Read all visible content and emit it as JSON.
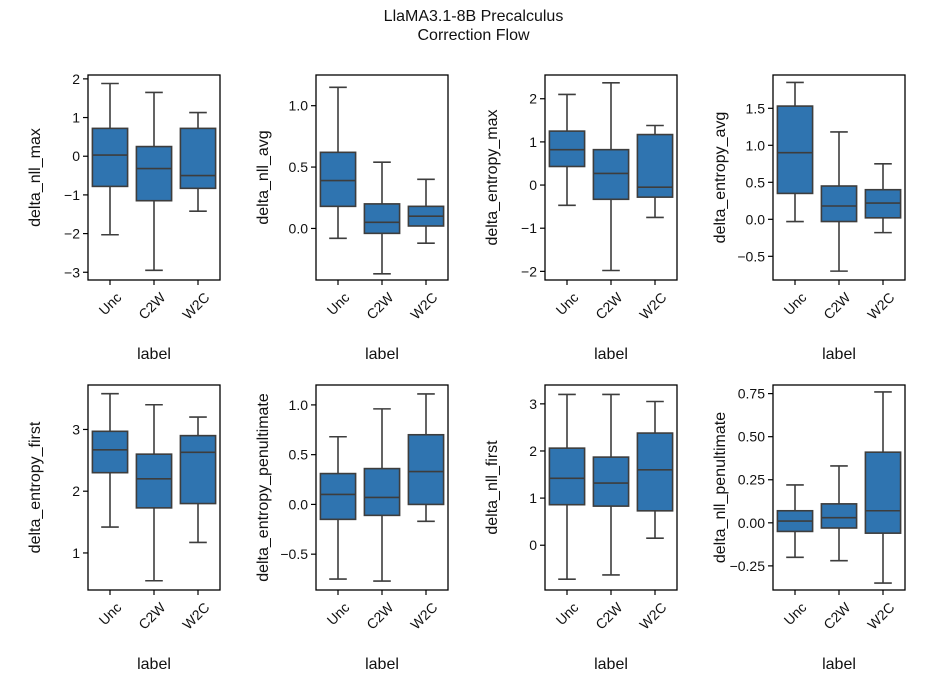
{
  "figure": {
    "title_line1": "LlaMA3.1-8B Precalculus",
    "title_line2": "Correction Flow",
    "box_color": "#2f74b0",
    "line_color": "#3d3d3d"
  },
  "chart_data": [
    {
      "type": "box",
      "ylabel": "delta_nll_max",
      "xlabel": "label",
      "categories": [
        "Unc",
        "C2W",
        "W2C"
      ],
      "ylim": [
        -3.2,
        2.1
      ],
      "yticks": [
        -3,
        -2,
        -1,
        0,
        1,
        2
      ],
      "yticklabels": [
        "−3",
        "−2",
        "−1",
        "0",
        "1",
        "2"
      ],
      "boxes": [
        {
          "whislo": -2.03,
          "q1": -0.78,
          "med": 0.03,
          "q3": 0.72,
          "whishi": 1.88
        },
        {
          "whislo": -2.95,
          "q1": -1.15,
          "med": -0.32,
          "q3": 0.25,
          "whishi": 1.65
        },
        {
          "whislo": -1.42,
          "q1": -0.83,
          "med": -0.5,
          "q3": 0.72,
          "whishi": 1.13
        }
      ]
    },
    {
      "type": "box",
      "ylabel": "delta_nll_avg",
      "xlabel": "label",
      "categories": [
        "Unc",
        "C2W",
        "W2C"
      ],
      "ylim": [
        -0.42,
        1.25
      ],
      "yticks": [
        0.0,
        0.5,
        1.0
      ],
      "yticklabels": [
        "0.0",
        "0.5",
        "1.0"
      ],
      "boxes": [
        {
          "whislo": -0.08,
          "q1": 0.18,
          "med": 0.39,
          "q3": 0.62,
          "whishi": 1.15
        },
        {
          "whislo": -0.37,
          "q1": -0.04,
          "med": 0.05,
          "q3": 0.2,
          "whishi": 0.54
        },
        {
          "whislo": -0.12,
          "q1": 0.02,
          "med": 0.1,
          "q3": 0.18,
          "whishi": 0.4
        }
      ]
    },
    {
      "type": "box",
      "ylabel": "delta_entropy_max",
      "xlabel": "label",
      "categories": [
        "Unc",
        "C2W",
        "W2C"
      ],
      "ylim": [
        -2.2,
        2.55
      ],
      "yticks": [
        -2,
        -1,
        0,
        1,
        2
      ],
      "yticklabels": [
        "−2",
        "−1",
        "0",
        "1",
        "2"
      ],
      "boxes": [
        {
          "whislo": -0.47,
          "q1": 0.43,
          "med": 0.82,
          "q3": 1.25,
          "whishi": 2.1
        },
        {
          "whislo": -1.98,
          "q1": -0.33,
          "med": 0.27,
          "q3": 0.82,
          "whishi": 2.37
        },
        {
          "whislo": -0.75,
          "q1": -0.28,
          "med": -0.05,
          "q3": 1.17,
          "whishi": 1.38
        }
      ]
    },
    {
      "type": "box",
      "ylabel": "delta_entropy_avg",
      "xlabel": "label",
      "categories": [
        "Unc",
        "C2W",
        "W2C"
      ],
      "ylim": [
        -0.82,
        1.95
      ],
      "yticks": [
        -0.5,
        0.0,
        0.5,
        1.0,
        1.5
      ],
      "yticklabels": [
        "−0.5",
        "0.0",
        "0.5",
        "1.0",
        "1.5"
      ],
      "boxes": [
        {
          "whislo": -0.03,
          "q1": 0.35,
          "med": 0.9,
          "q3": 1.53,
          "whishi": 1.85
        },
        {
          "whislo": -0.7,
          "q1": -0.03,
          "med": 0.18,
          "q3": 0.45,
          "whishi": 1.18
        },
        {
          "whislo": -0.18,
          "q1": 0.02,
          "med": 0.22,
          "q3": 0.4,
          "whishi": 0.75
        }
      ]
    },
    {
      "type": "box",
      "ylabel": "delta_entropy_first",
      "xlabel": "label",
      "categories": [
        "Unc",
        "C2W",
        "W2C"
      ],
      "ylim": [
        0.4,
        3.72
      ],
      "yticks": [
        1,
        2,
        3
      ],
      "yticklabels": [
        "1",
        "2",
        "3"
      ],
      "boxes": [
        {
          "whislo": 1.42,
          "q1": 2.3,
          "med": 2.67,
          "q3": 2.97,
          "whishi": 3.58
        },
        {
          "whislo": 0.55,
          "q1": 1.73,
          "med": 2.2,
          "q3": 2.6,
          "whishi": 3.4
        },
        {
          "whislo": 1.17,
          "q1": 1.8,
          "med": 2.63,
          "q3": 2.9,
          "whishi": 3.2
        }
      ]
    },
    {
      "type": "box",
      "ylabel": "delta_entropy_penultimate",
      "xlabel": "label",
      "categories": [
        "Unc",
        "C2W",
        "W2C"
      ],
      "ylim": [
        -0.86,
        1.2
      ],
      "yticks": [
        -0.5,
        0.0,
        0.5,
        1.0
      ],
      "yticklabels": [
        "−0.5",
        "0.0",
        "0.5",
        "1.0"
      ],
      "boxes": [
        {
          "whislo": -0.75,
          "q1": -0.15,
          "med": 0.1,
          "q3": 0.31,
          "whishi": 0.68
        },
        {
          "whislo": -0.77,
          "q1": -0.11,
          "med": 0.07,
          "q3": 0.36,
          "whishi": 0.96
        },
        {
          "whislo": -0.17,
          "q1": 0.0,
          "med": 0.33,
          "q3": 0.7,
          "whishi": 1.11
        }
      ]
    },
    {
      "type": "box",
      "ylabel": "delta_nll_first",
      "xlabel": "label",
      "categories": [
        "Unc",
        "C2W",
        "W2C"
      ],
      "ylim": [
        -0.95,
        3.4
      ],
      "yticks": [
        0,
        1,
        2,
        3
      ],
      "yticklabels": [
        "0",
        "1",
        "2",
        "3"
      ],
      "boxes": [
        {
          "whislo": -0.72,
          "q1": 0.86,
          "med": 1.42,
          "q3": 2.06,
          "whishi": 3.2
        },
        {
          "whislo": -0.63,
          "q1": 0.83,
          "med": 1.32,
          "q3": 1.87,
          "whishi": 3.2
        },
        {
          "whislo": 0.15,
          "q1": 0.73,
          "med": 1.6,
          "q3": 2.38,
          "whishi": 3.05
        }
      ]
    },
    {
      "type": "box",
      "ylabel": "delta_nll_penultimate",
      "xlabel": "label",
      "categories": [
        "Unc",
        "C2W",
        "W2C"
      ],
      "ylim": [
        -0.39,
        0.8
      ],
      "yticks": [
        -0.25,
        0.0,
        0.25,
        0.5,
        0.75
      ],
      "yticklabels": [
        "−0.25",
        "0.00",
        "0.25",
        "0.50",
        "0.75"
      ],
      "boxes": [
        {
          "whislo": -0.2,
          "q1": -0.05,
          "med": 0.01,
          "q3": 0.07,
          "whishi": 0.22
        },
        {
          "whislo": -0.22,
          "q1": -0.03,
          "med": 0.03,
          "q3": 0.11,
          "whishi": 0.33
        },
        {
          "whislo": -0.35,
          "q1": -0.06,
          "med": 0.07,
          "q3": 0.41,
          "whishi": 0.76
        }
      ]
    }
  ]
}
